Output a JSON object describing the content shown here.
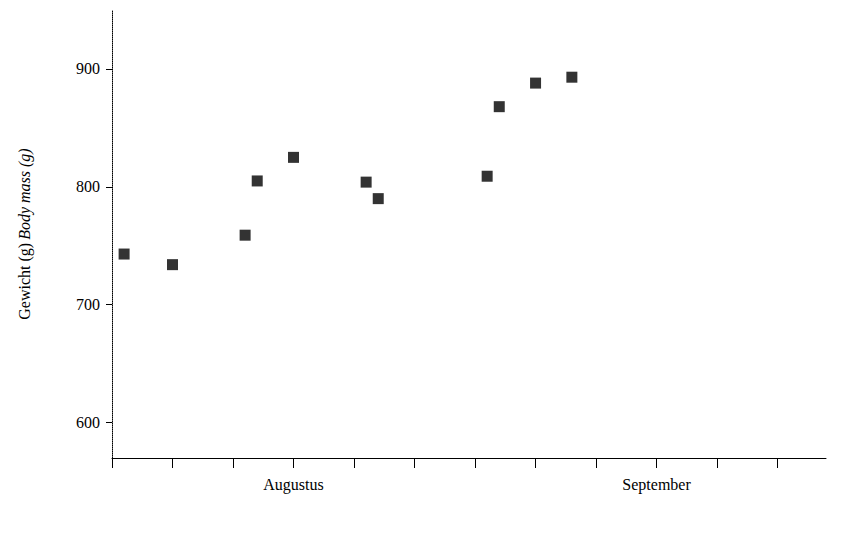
{
  "chart_data": {
    "type": "scatter",
    "ylabel": [
      "Gewicht (g)",
      "Body mass (g)"
    ],
    "x": [
      2,
      6,
      12,
      13,
      16,
      22,
      23,
      32,
      33,
      36,
      39
    ],
    "values": [
      743,
      734,
      759,
      805,
      825,
      804,
      790,
      809,
      868,
      888,
      893
    ],
    "color": "#000000",
    "marker": "square",
    "xlim": [
      1,
      60
    ],
    "xticks": [
      {
        "value": 16,
        "label": "Augustus"
      },
      {
        "value": 46,
        "label": "September"
      }
    ],
    "ylim": [
      570,
      950
    ],
    "yticks": [
      600,
      700,
      800,
      900
    ],
    "grid": false
  }
}
